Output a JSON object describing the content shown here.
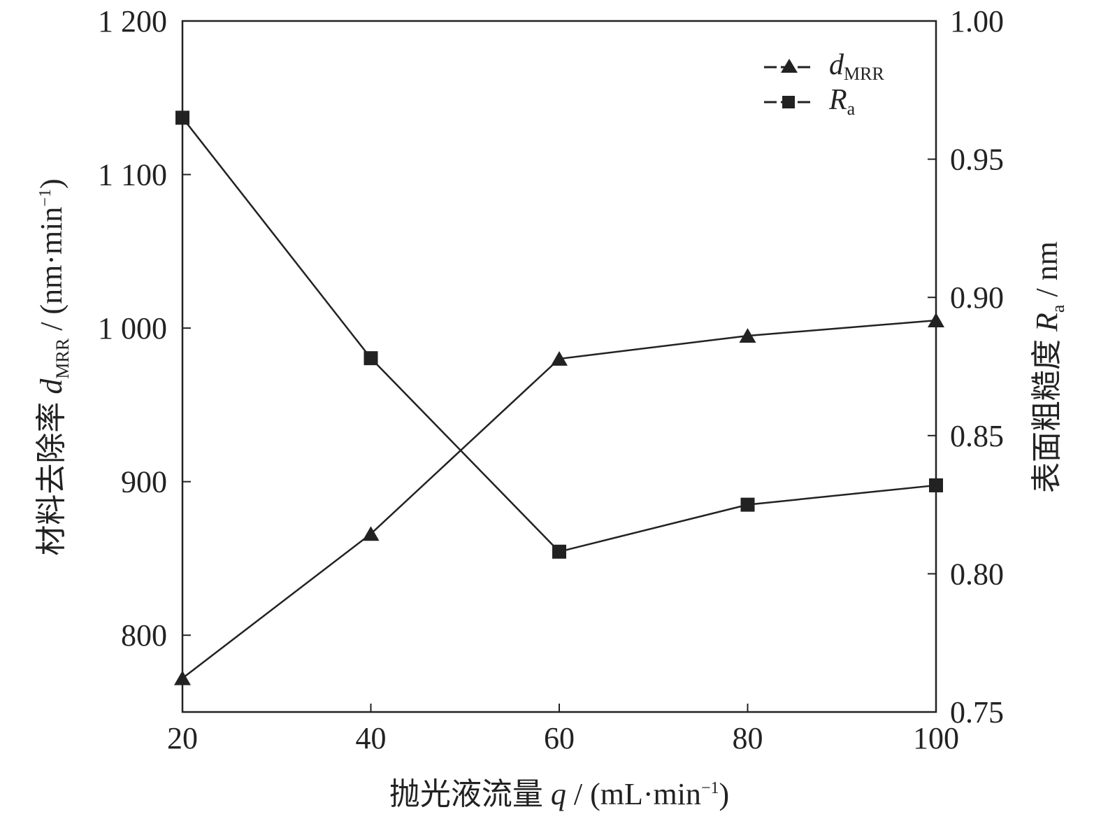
{
  "chart_data": {
    "type": "line",
    "x": [
      20,
      40,
      60,
      80,
      100
    ],
    "xlim": [
      20,
      100
    ],
    "xticks": [
      "20",
      "40",
      "60",
      "80",
      "100"
    ],
    "xlabel": {
      "prefix": "抛光液流量 ",
      "var": "q",
      "unit_open": " / (mL·min",
      "sup": "−1",
      "unit_close": ")"
    },
    "y_left": {
      "lim": [
        750,
        1200
      ],
      "ticks": [
        800,
        900,
        1000,
        1100,
        1200
      ],
      "tick_labels": [
        "800",
        "900",
        "1 000",
        "1 100",
        "1 200"
      ],
      "label": {
        "prefix": "材料去除率 ",
        "var": "d",
        "sub": "MRR",
        "unit_open": " / (nm·min",
        "sup": "−1",
        "unit_close": ")"
      }
    },
    "y_right": {
      "lim": [
        0.75,
        1.0
      ],
      "ticks": [
        0.75,
        0.8,
        0.85,
        0.9,
        0.95,
        1.0
      ],
      "tick_labels": [
        "0.75",
        "0.80",
        "0.85",
        "0.90",
        "0.95",
        "1.00"
      ],
      "label": {
        "prefix": "表面粗糙度 ",
        "var": "R",
        "sub": "a",
        "unit": " / nm"
      }
    },
    "series": [
      {
        "name_var": "d",
        "name_sub": "MRR",
        "axis": "left",
        "marker": "triangle",
        "values": [
          772,
          866,
          980,
          995,
          1005
        ]
      },
      {
        "name_var": "R",
        "name_sub": "a",
        "axis": "right",
        "marker": "square",
        "values": [
          0.965,
          0.878,
          0.808,
          0.825,
          0.832
        ]
      }
    ],
    "legend_position": "top-right",
    "grid": false
  }
}
